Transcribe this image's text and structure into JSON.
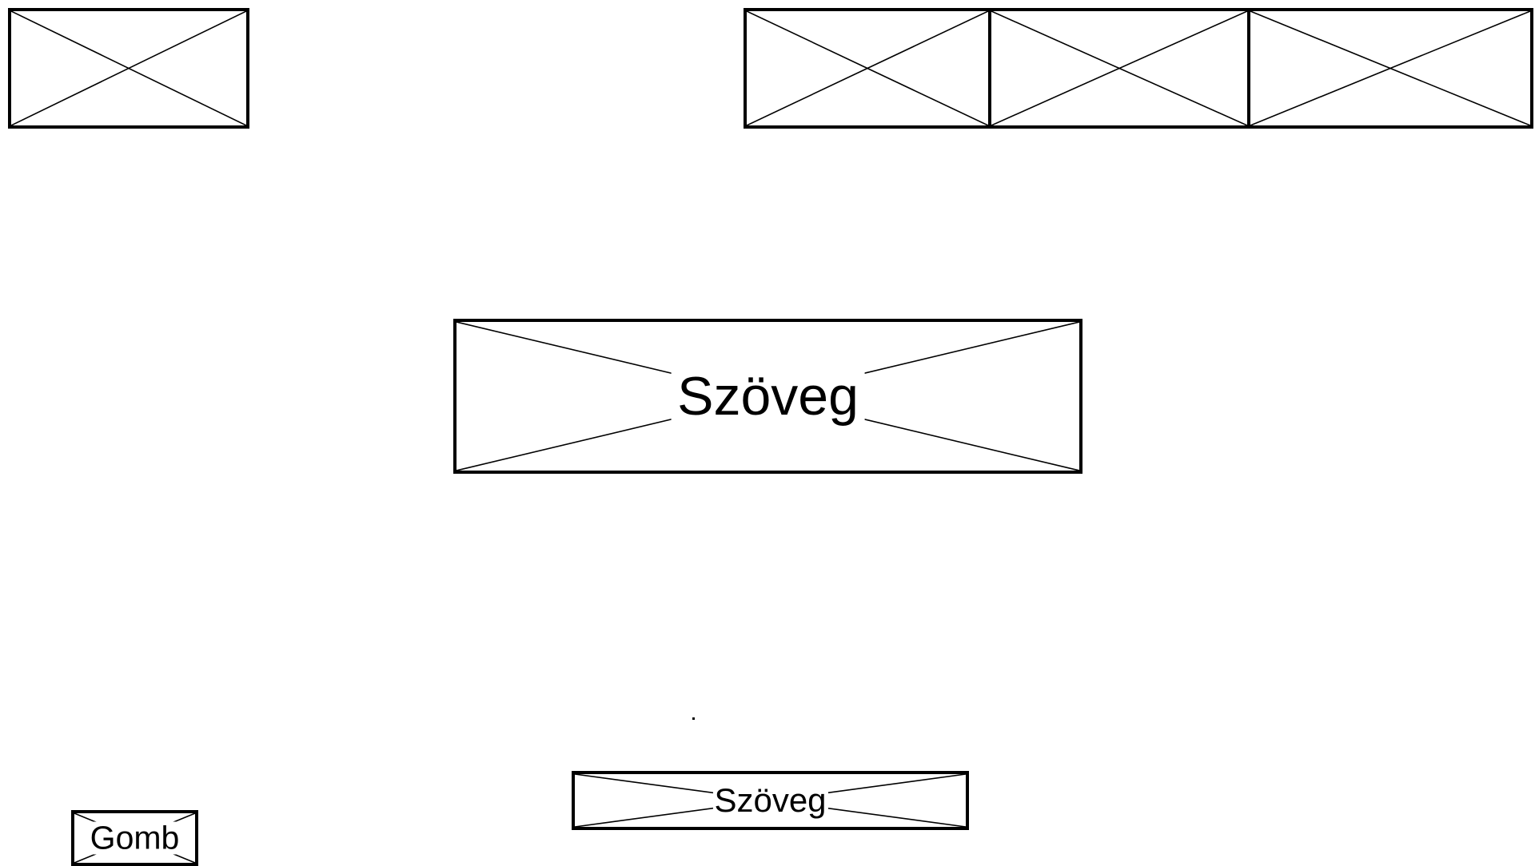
{
  "main": {
    "text_label": "Szöveg"
  },
  "footer": {
    "text_label": "Szöveg",
    "button_label": "Gomb"
  },
  "colors": {
    "stroke": "#000000",
    "background": "#ffffff"
  }
}
